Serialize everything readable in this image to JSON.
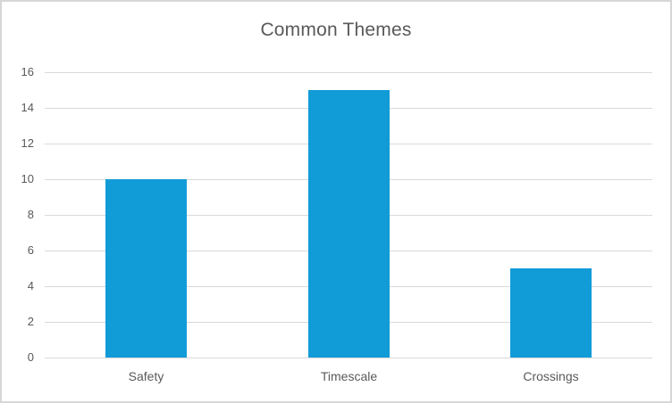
{
  "chart_data": {
    "type": "bar",
    "title": "Common Themes",
    "categories": [
      "Safety",
      "Timescale",
      "Crossings"
    ],
    "values": [
      10,
      15,
      5
    ],
    "xlabel": "",
    "ylabel": "",
    "ylim": [
      0,
      16
    ],
    "yticks": [
      0,
      2,
      4,
      6,
      8,
      10,
      12,
      14,
      16
    ],
    "grid": true,
    "legend": "none",
    "colors": {
      "bar": "#119BD7",
      "text": "#595959",
      "gridline": "#D9D9D9",
      "axis_line": "#D9D9D9",
      "border": "#D7D7D7",
      "background": "#FFFFFF"
    }
  }
}
